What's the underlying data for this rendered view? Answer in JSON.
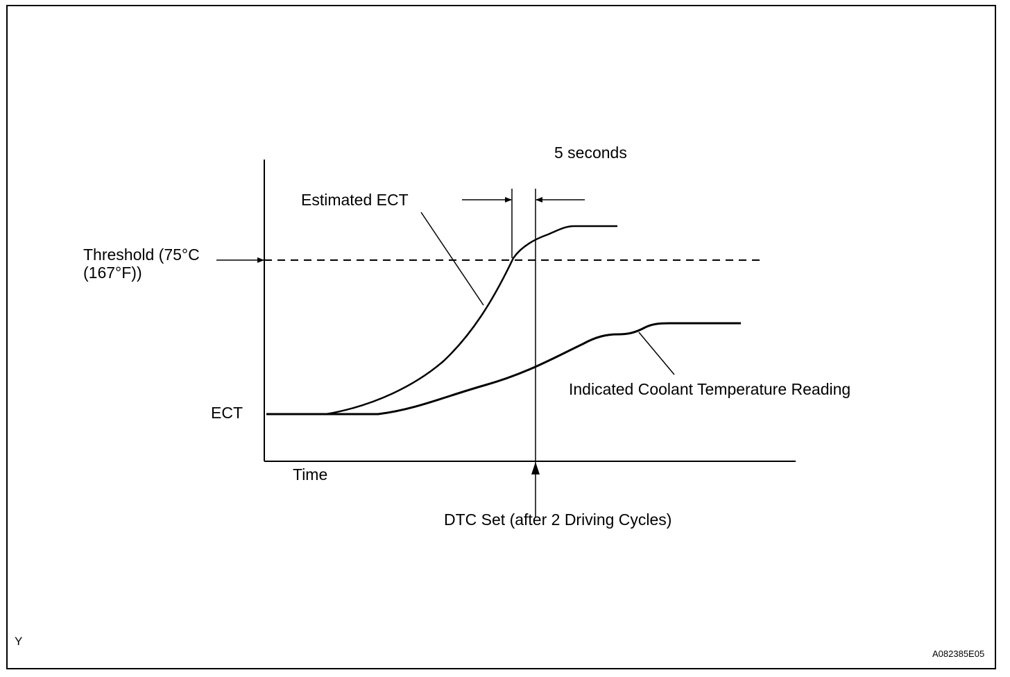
{
  "diagram": {
    "labels": {
      "estimated_ect": "Estimated ECT",
      "five_seconds": "5 seconds",
      "threshold_line1": "Threshold  (75°C",
      "threshold_line2": "(167°F))",
      "ect": "ECT",
      "time": "Time",
      "indicated_reading": "Indicated Coolant Temperature Reading",
      "dtc_set": "DTC Set (after 2 Driving Cycles)"
    },
    "footer": {
      "corner_mark": "Y",
      "figure_code": "A082385E05"
    },
    "colors": {
      "line": "#000000",
      "background": "#ffffff"
    }
  }
}
